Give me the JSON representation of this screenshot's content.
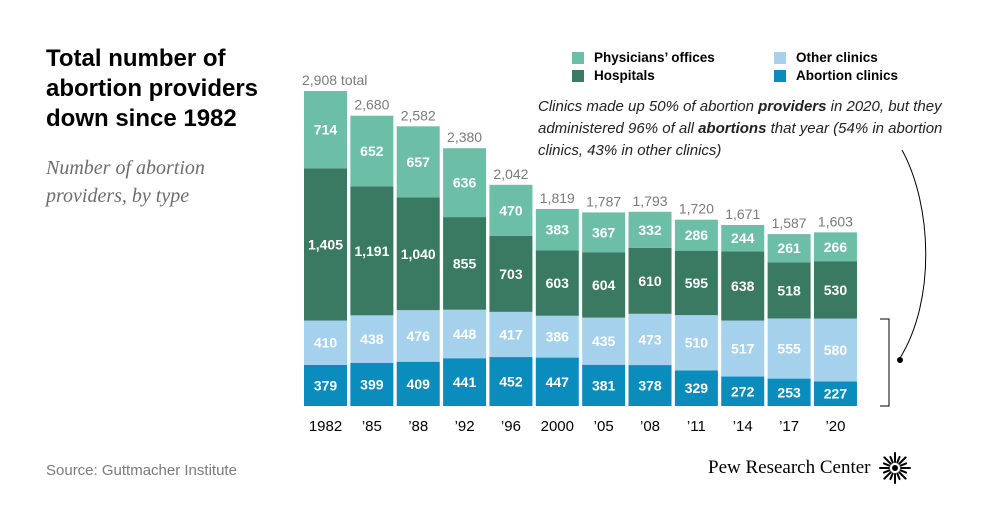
{
  "title": "Total number of abortion providers down since 1982",
  "subtitle": "Number of abortion providers, by type",
  "source": "Source: Guttmacher Institute",
  "brand": {
    "name": "Pew Research Center",
    "logo_icon": "pew-sunburst-icon"
  },
  "annotation": {
    "part1": "Clinics made up 50% of abortion ",
    "bold1": "providers",
    "part2": " in 2020, but they administered 96% of all ",
    "bold2": "abortions",
    "part3": " that year (54% in abortion clinics, 43% in other clinics)"
  },
  "chart_data": {
    "type": "bar",
    "stacked": true,
    "title": "Total number of abortion providers down since 1982",
    "subtitle": "Number of abortion providers, by type",
    "xlabel": "",
    "ylabel": "",
    "ylim": [
      0,
      2908
    ],
    "categories": [
      "1982",
      "’85",
      "’88",
      "’92",
      "’96",
      "2000",
      "’05",
      "’08",
      "’11",
      "’14",
      "’17",
      "’20"
    ],
    "totals": [
      "2,908 total",
      "2,680",
      "2,582",
      "2,380",
      "2,042",
      "1,819",
      "1,787",
      "1,793",
      "1,720",
      "1,671",
      "1,587",
      "1,603"
    ],
    "series": [
      {
        "name": "Abortion clinics",
        "color": "#0a8cbd",
        "text_color": "#ffffff",
        "values": [
          379,
          399,
          409,
          441,
          452,
          447,
          381,
          378,
          329,
          272,
          253,
          227
        ],
        "labels": [
          "379",
          "399",
          "409",
          "441",
          "452",
          "447",
          "381",
          "378",
          "329",
          "272",
          "253",
          "227"
        ]
      },
      {
        "name": "Other clinics",
        "color": "#a6d1ec",
        "text_color": "#ffffff",
        "values": [
          410,
          438,
          476,
          448,
          417,
          386,
          435,
          473,
          510,
          517,
          555,
          580
        ],
        "labels": [
          "410",
          "438",
          "476",
          "448",
          "417",
          "386",
          "435",
          "473",
          "510",
          "517",
          "555",
          "580"
        ]
      },
      {
        "name": "Hospitals",
        "color": "#3a7a63",
        "text_color": "#ffffff",
        "values": [
          1405,
          1191,
          1040,
          855,
          703,
          603,
          604,
          610,
          595,
          638,
          518,
          530
        ],
        "labels": [
          "1,405",
          "1,191",
          "1,040",
          "855",
          "703",
          "603",
          "604",
          "610",
          "595",
          "638",
          "518",
          "530"
        ]
      },
      {
        "name": "Physicians’ offices",
        "color": "#6cbfa6",
        "text_color": "#ffffff",
        "values": [
          714,
          652,
          657,
          636,
          470,
          383,
          367,
          332,
          286,
          244,
          261,
          266
        ],
        "labels": [
          "714",
          "652",
          "657",
          "636",
          "470",
          "383",
          "367",
          "332",
          "286",
          "244",
          "261",
          "266"
        ]
      }
    ],
    "legend": {
      "placement": "top-right",
      "items": [
        {
          "label": "Physicians’ offices",
          "color": "#6cbfa6"
        },
        {
          "label": "Other clinics",
          "color": "#a6d1ec"
        },
        {
          "label": "Hospitals",
          "color": "#3a7a63"
        },
        {
          "label": "Abortion clinics",
          "color": "#0a8cbd"
        }
      ]
    }
  }
}
